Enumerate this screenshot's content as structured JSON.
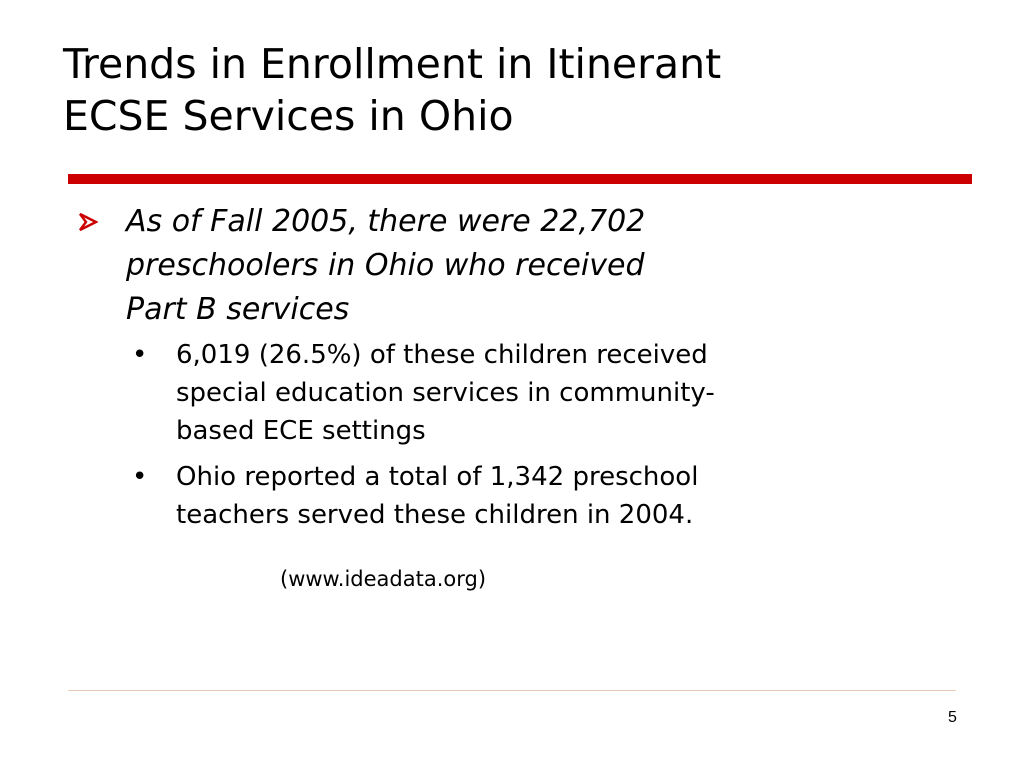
{
  "slide": {
    "title_lines": [
      "Trends in Enrollment in Itinerant",
      "ECSE Services in Ohio"
    ],
    "accent_color": "#cc0000",
    "bullet_icon": "arrow-bullet-icon",
    "main_point": {
      "lines": [
        "As of Fall 2005, there were 22,702",
        "preschoolers in Ohio who received",
        "Part B services"
      ]
    },
    "sub_points": [
      {
        "bullet": "•",
        "lines": [
          "6,019 (26.5%) of these children received",
          "special education services in community-",
          "based ECE settings"
        ]
      },
      {
        "bullet": "•",
        "lines": [
          "Ohio reported a total of 1,342 preschool",
          "teachers served these children in 2004."
        ]
      }
    ],
    "source": "(www.ideadata.org)",
    "page_number": "5"
  }
}
